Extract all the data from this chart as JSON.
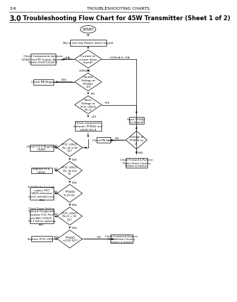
{
  "title_left": "3-6",
  "title_right": "TROUBLESHOOTING CHARTS",
  "section": "3.0",
  "section_title": "Troubleshooting Flow Chart for 45W Transmitter (Sheet 1 of 2)",
  "bg_color": "#ffffff"
}
